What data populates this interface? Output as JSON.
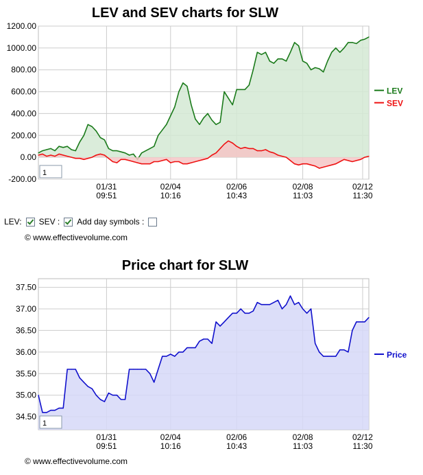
{
  "charts": {
    "lev_sev": {
      "title": "LEV and SEV charts for SLW",
      "y_ticks": [
        "1200.00",
        "1000.00",
        "800.00",
        "600.00",
        "400.00",
        "200.00",
        "0.00",
        "-200.00"
      ],
      "x_ticks": [
        [
          "01/31",
          "09:51"
        ],
        [
          "02/04",
          "10:16"
        ],
        [
          "02/06",
          "10:43"
        ],
        [
          "02/08",
          "11:03"
        ],
        [
          "02/12",
          "11:30"
        ]
      ],
      "legend": [
        "LEV",
        "SEV"
      ],
      "box_label": "1"
    },
    "price": {
      "title": "Price chart for SLW",
      "y_ticks": [
        "37.50",
        "37.00",
        "36.50",
        "36.00",
        "35.50",
        "35.00",
        "34.50"
      ],
      "x_ticks": [
        [
          "01/31",
          "09:51"
        ],
        [
          "02/04",
          "10:16"
        ],
        [
          "02/06",
          "10:43"
        ],
        [
          "02/08",
          "11:03"
        ],
        [
          "02/12",
          "11:30"
        ]
      ],
      "legend": [
        "Price"
      ],
      "box_label": "1"
    }
  },
  "controls": {
    "lev_label": "LEV:",
    "sev_label": "SEV :",
    "day_symbols_label": "Add day symbols :",
    "lev_checked": true,
    "sev_checked": true,
    "day_symbols_checked": false
  },
  "copyright": "© www.effectivevolume.com",
  "colors": {
    "lev": "#1a7a1a",
    "lev_fill": "#d3e9d3",
    "sev": "#ee1111",
    "sev_fill": "#f4c6c6",
    "price": "#1010cc",
    "price_fill": "#d6d8f8"
  },
  "chart_data": [
    {
      "type": "area",
      "title": "LEV and SEV charts for SLW",
      "x": [
        0,
        1,
        2,
        3,
        4,
        5,
        6,
        7,
        8,
        9,
        10,
        11,
        12,
        13,
        14,
        15,
        16,
        17,
        18,
        19,
        20,
        21,
        22,
        23,
        24,
        25,
        26,
        27,
        28,
        29,
        30,
        31,
        32,
        33,
        34,
        35,
        36,
        37,
        38,
        39,
        40,
        41,
        42,
        43,
        44,
        45,
        46,
        47,
        48,
        49,
        50,
        51,
        52,
        53,
        54,
        55,
        56,
        57,
        58,
        59,
        60,
        61,
        62,
        63,
        64,
        65,
        66,
        67,
        68,
        69,
        70,
        71,
        72,
        73,
        74,
        75,
        76,
        77,
        78,
        79,
        80
      ],
      "x_tick_positions": [
        16.5,
        32,
        48,
        64,
        78.5
      ],
      "x_tick_labels": [
        "01/31 09:51",
        "02/04 10:16",
        "02/06 10:43",
        "02/08 11:03",
        "02/12 11:30"
      ],
      "ylim": [
        -200,
        1200
      ],
      "series": [
        {
          "name": "LEV",
          "values": [
            40,
            60,
            70,
            80,
            60,
            100,
            90,
            100,
            70,
            60,
            140,
            200,
            300,
            280,
            240,
            180,
            160,
            80,
            60,
            60,
            50,
            40,
            20,
            30,
            -20,
            40,
            60,
            80,
            100,
            200,
            250,
            300,
            380,
            460,
            600,
            680,
            650,
            480,
            350,
            300,
            360,
            400,
            340,
            300,
            320,
            600,
            540,
            480,
            620,
            620,
            620,
            660,
            800,
            960,
            940,
            960,
            880,
            860,
            900,
            900,
            880,
            960,
            1050,
            1020,
            880,
            860,
            800,
            820,
            810,
            780,
            880,
            960,
            1000,
            960,
            1000,
            1050,
            1050,
            1040,
            1070,
            1080,
            1100
          ]
        },
        {
          "name": "SEV",
          "values": [
            20,
            30,
            10,
            20,
            10,
            30,
            20,
            10,
            0,
            -10,
            -10,
            -20,
            -10,
            0,
            20,
            30,
            20,
            -10,
            -40,
            -50,
            -20,
            -20,
            -30,
            -40,
            -50,
            -60,
            -60,
            -60,
            -40,
            -40,
            -30,
            -20,
            -50,
            -40,
            -40,
            -60,
            -60,
            -50,
            -40,
            -30,
            -20,
            -10,
            20,
            40,
            80,
            120,
            150,
            130,
            100,
            80,
            90,
            80,
            80,
            60,
            60,
            70,
            50,
            40,
            20,
            10,
            0,
            -30,
            -60,
            -70,
            -60,
            -60,
            -70,
            -80,
            -100,
            -90,
            -80,
            -70,
            -60,
            -40,
            -20,
            -30,
            -40,
            -30,
            -20,
            0,
            10
          ]
        }
      ]
    },
    {
      "type": "area",
      "title": "Price chart for SLW",
      "x": [
        0,
        1,
        2,
        3,
        4,
        5,
        6,
        7,
        8,
        9,
        10,
        11,
        12,
        13,
        14,
        15,
        16,
        17,
        18,
        19,
        20,
        21,
        22,
        23,
        24,
        25,
        26,
        27,
        28,
        29,
        30,
        31,
        32,
        33,
        34,
        35,
        36,
        37,
        38,
        39,
        40,
        41,
        42,
        43,
        44,
        45,
        46,
        47,
        48,
        49,
        50,
        51,
        52,
        53,
        54,
        55,
        56,
        57,
        58,
        59,
        60,
        61,
        62,
        63,
        64,
        65,
        66,
        67,
        68,
        69,
        70,
        71,
        72,
        73,
        74,
        75,
        76,
        77,
        78,
        79,
        80
      ],
      "x_tick_positions": [
        16.5,
        32,
        48,
        64,
        78.5
      ],
      "x_tick_labels": [
        "01/31 09:51",
        "02/04 10:16",
        "02/06 10:43",
        "02/08 11:03",
        "02/12 11:30"
      ],
      "ylim": [
        34.2,
        37.7
      ],
      "series": [
        {
          "name": "Price",
          "values": [
            35.0,
            34.6,
            34.6,
            34.65,
            34.65,
            34.7,
            34.7,
            35.6,
            35.6,
            35.6,
            35.4,
            35.3,
            35.2,
            35.15,
            35.0,
            34.9,
            34.85,
            35.05,
            35.0,
            35.0,
            34.9,
            34.9,
            35.6,
            35.6,
            35.6,
            35.6,
            35.6,
            35.5,
            35.3,
            35.6,
            35.9,
            35.9,
            35.95,
            35.9,
            36.0,
            36.0,
            36.1,
            36.1,
            36.1,
            36.25,
            36.3,
            36.3,
            36.2,
            36.7,
            36.6,
            36.7,
            36.8,
            36.9,
            36.9,
            37.0,
            36.9,
            36.9,
            36.95,
            37.15,
            37.1,
            37.1,
            37.1,
            37.15,
            37.2,
            37.0,
            37.1,
            37.3,
            37.1,
            37.15,
            37.0,
            36.9,
            37.0,
            36.2,
            36.0,
            35.9,
            35.9,
            35.9,
            35.9,
            36.05,
            36.05,
            36.0,
            36.5,
            36.7,
            36.7,
            36.7,
            36.8
          ]
        }
      ]
    }
  ]
}
